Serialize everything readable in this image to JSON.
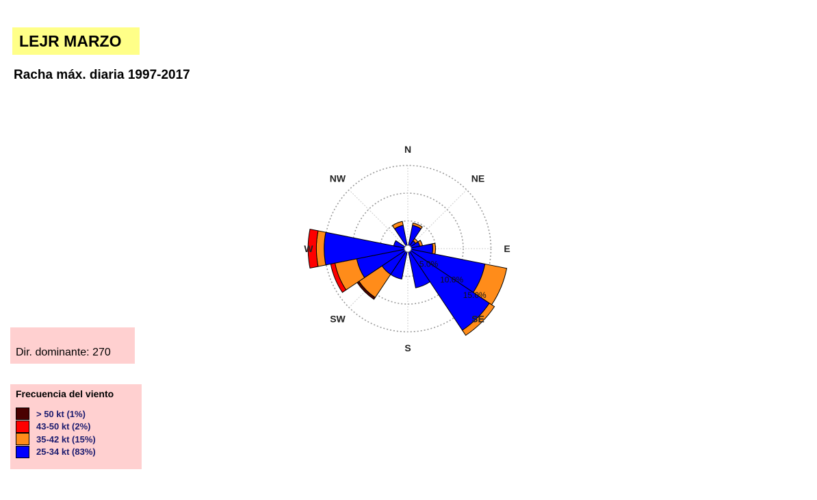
{
  "header": {
    "title": "LEJR MARZO",
    "subtitle": "Racha máx. diaria 1997-2017"
  },
  "dominant": {
    "label": "Dir. dominante:",
    "value": "270"
  },
  "legend": {
    "title": "Frecuencia del viento",
    "items": [
      {
        "label": "> 50 kt (1%)",
        "color": "#4a0000"
      },
      {
        "label": "43-50 kt (2%)",
        "color": "#ff0000"
      },
      {
        "label": "35-42 kt (15%)",
        "color": "#ff8c1a"
      },
      {
        "label": "25-34 kt (83%)",
        "color": "#0000ff"
      }
    ]
  },
  "chart_data": {
    "type": "polar-bar",
    "directions": [
      "N",
      "NE",
      "E",
      "SE",
      "S",
      "SW",
      "W",
      "NW"
    ],
    "ring_labels": [
      "5.0%",
      "10.0%",
      "15.0%"
    ],
    "rings": [
      5,
      10,
      15
    ],
    "grid": true,
    "sector_angles": [
      0,
      22.5,
      45,
      67.5,
      90,
      112.5,
      135,
      157.5,
      180,
      202.5,
      225,
      247.5,
      270,
      292.5,
      315,
      337.5
    ],
    "series": [
      {
        "name": "25-34 kt",
        "color": "#0000ff",
        "values": [
          0.4,
          4.3,
          1.7,
          2.2,
          4.5,
          14.2,
          17.7,
          7.2,
          0.4,
          5.6,
          5.6,
          9.4,
          15.1,
          2.6,
          0.5,
          4.3
        ]
      },
      {
        "name": "35-42 kt",
        "color": "#ff8c1a",
        "values": [
          0.0,
          0.4,
          0.5,
          0.5,
          0.5,
          4.0,
          1.1,
          0.0,
          0.0,
          0.0,
          5.0,
          4.0,
          1.4,
          0.0,
          0.0,
          0.7
        ]
      },
      {
        "name": "43-50 kt",
        "color": "#ff0000",
        "values": [
          0.0,
          0.0,
          0.0,
          0.0,
          0.0,
          0.0,
          0.0,
          0.0,
          0.0,
          0.0,
          0.0,
          0.8,
          1.5,
          0.0,
          0.0,
          0.0
        ]
      },
      {
        "name": "> 50 kt",
        "color": "#4a0000",
        "values": [
          0.0,
          0.0,
          0.0,
          0.0,
          0.0,
          0.0,
          0.0,
          0.0,
          0.0,
          0.0,
          0.4,
          0.0,
          0.0,
          0.0,
          0.0,
          0.0
        ]
      }
    ]
  }
}
